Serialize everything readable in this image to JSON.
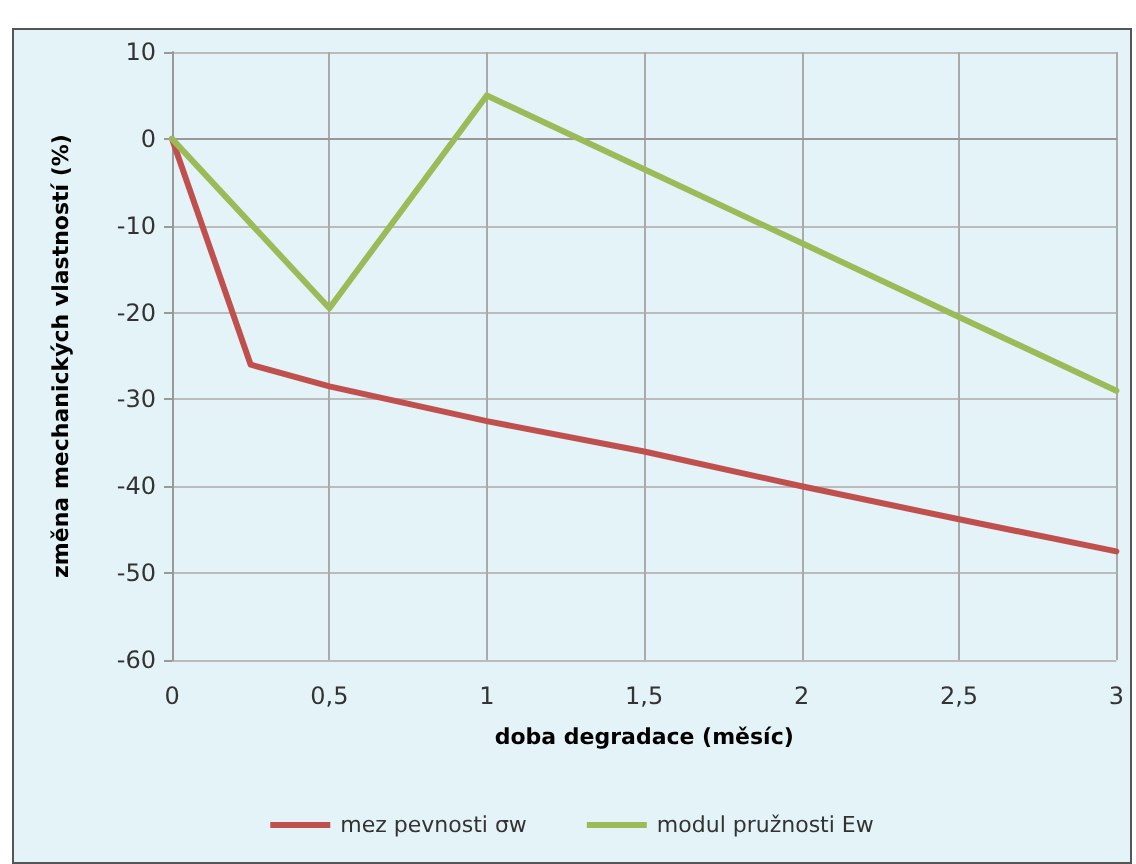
{
  "chart_data": {
    "type": "line",
    "xlabel": "doba degradace (měsíc)",
    "ylabel": "změna mechanických vlastností (%)",
    "x": [
      0,
      0.25,
      0.5,
      1,
      1.5,
      2,
      2.5,
      3
    ],
    "series": [
      {
        "name": "mez pevnosti σw",
        "color": "#c0504d",
        "values": [
          0,
          -26,
          -28.5,
          -32.5,
          -36,
          -40,
          -43.8,
          -47.5
        ]
      },
      {
        "name": "modul pružnosti Ew",
        "color": "#9bbb59",
        "x": [
          0,
          0.5,
          1,
          1.5,
          2,
          2.5,
          3
        ],
        "values": [
          0,
          -19.5,
          5,
          -3.5,
          -12,
          -20.5,
          -29
        ]
      }
    ],
    "xlim": [
      0,
      3
    ],
    "xticks": [
      {
        "value": 0,
        "label": "0"
      },
      {
        "value": 0.5,
        "label": "0,5"
      },
      {
        "value": 1,
        "label": "1"
      },
      {
        "value": 1.5,
        "label": "1,5"
      },
      {
        "value": 2,
        "label": "2"
      },
      {
        "value": 2.5,
        "label": "2,5"
      },
      {
        "value": 3,
        "label": "3"
      }
    ],
    "ylim": [
      -60,
      10
    ],
    "yticks": [
      -60,
      -50,
      -40,
      -30,
      -20,
      -10,
      0,
      10
    ],
    "grid": true,
    "legend": "bottom",
    "marker": "none",
    "line_style": "solid"
  }
}
